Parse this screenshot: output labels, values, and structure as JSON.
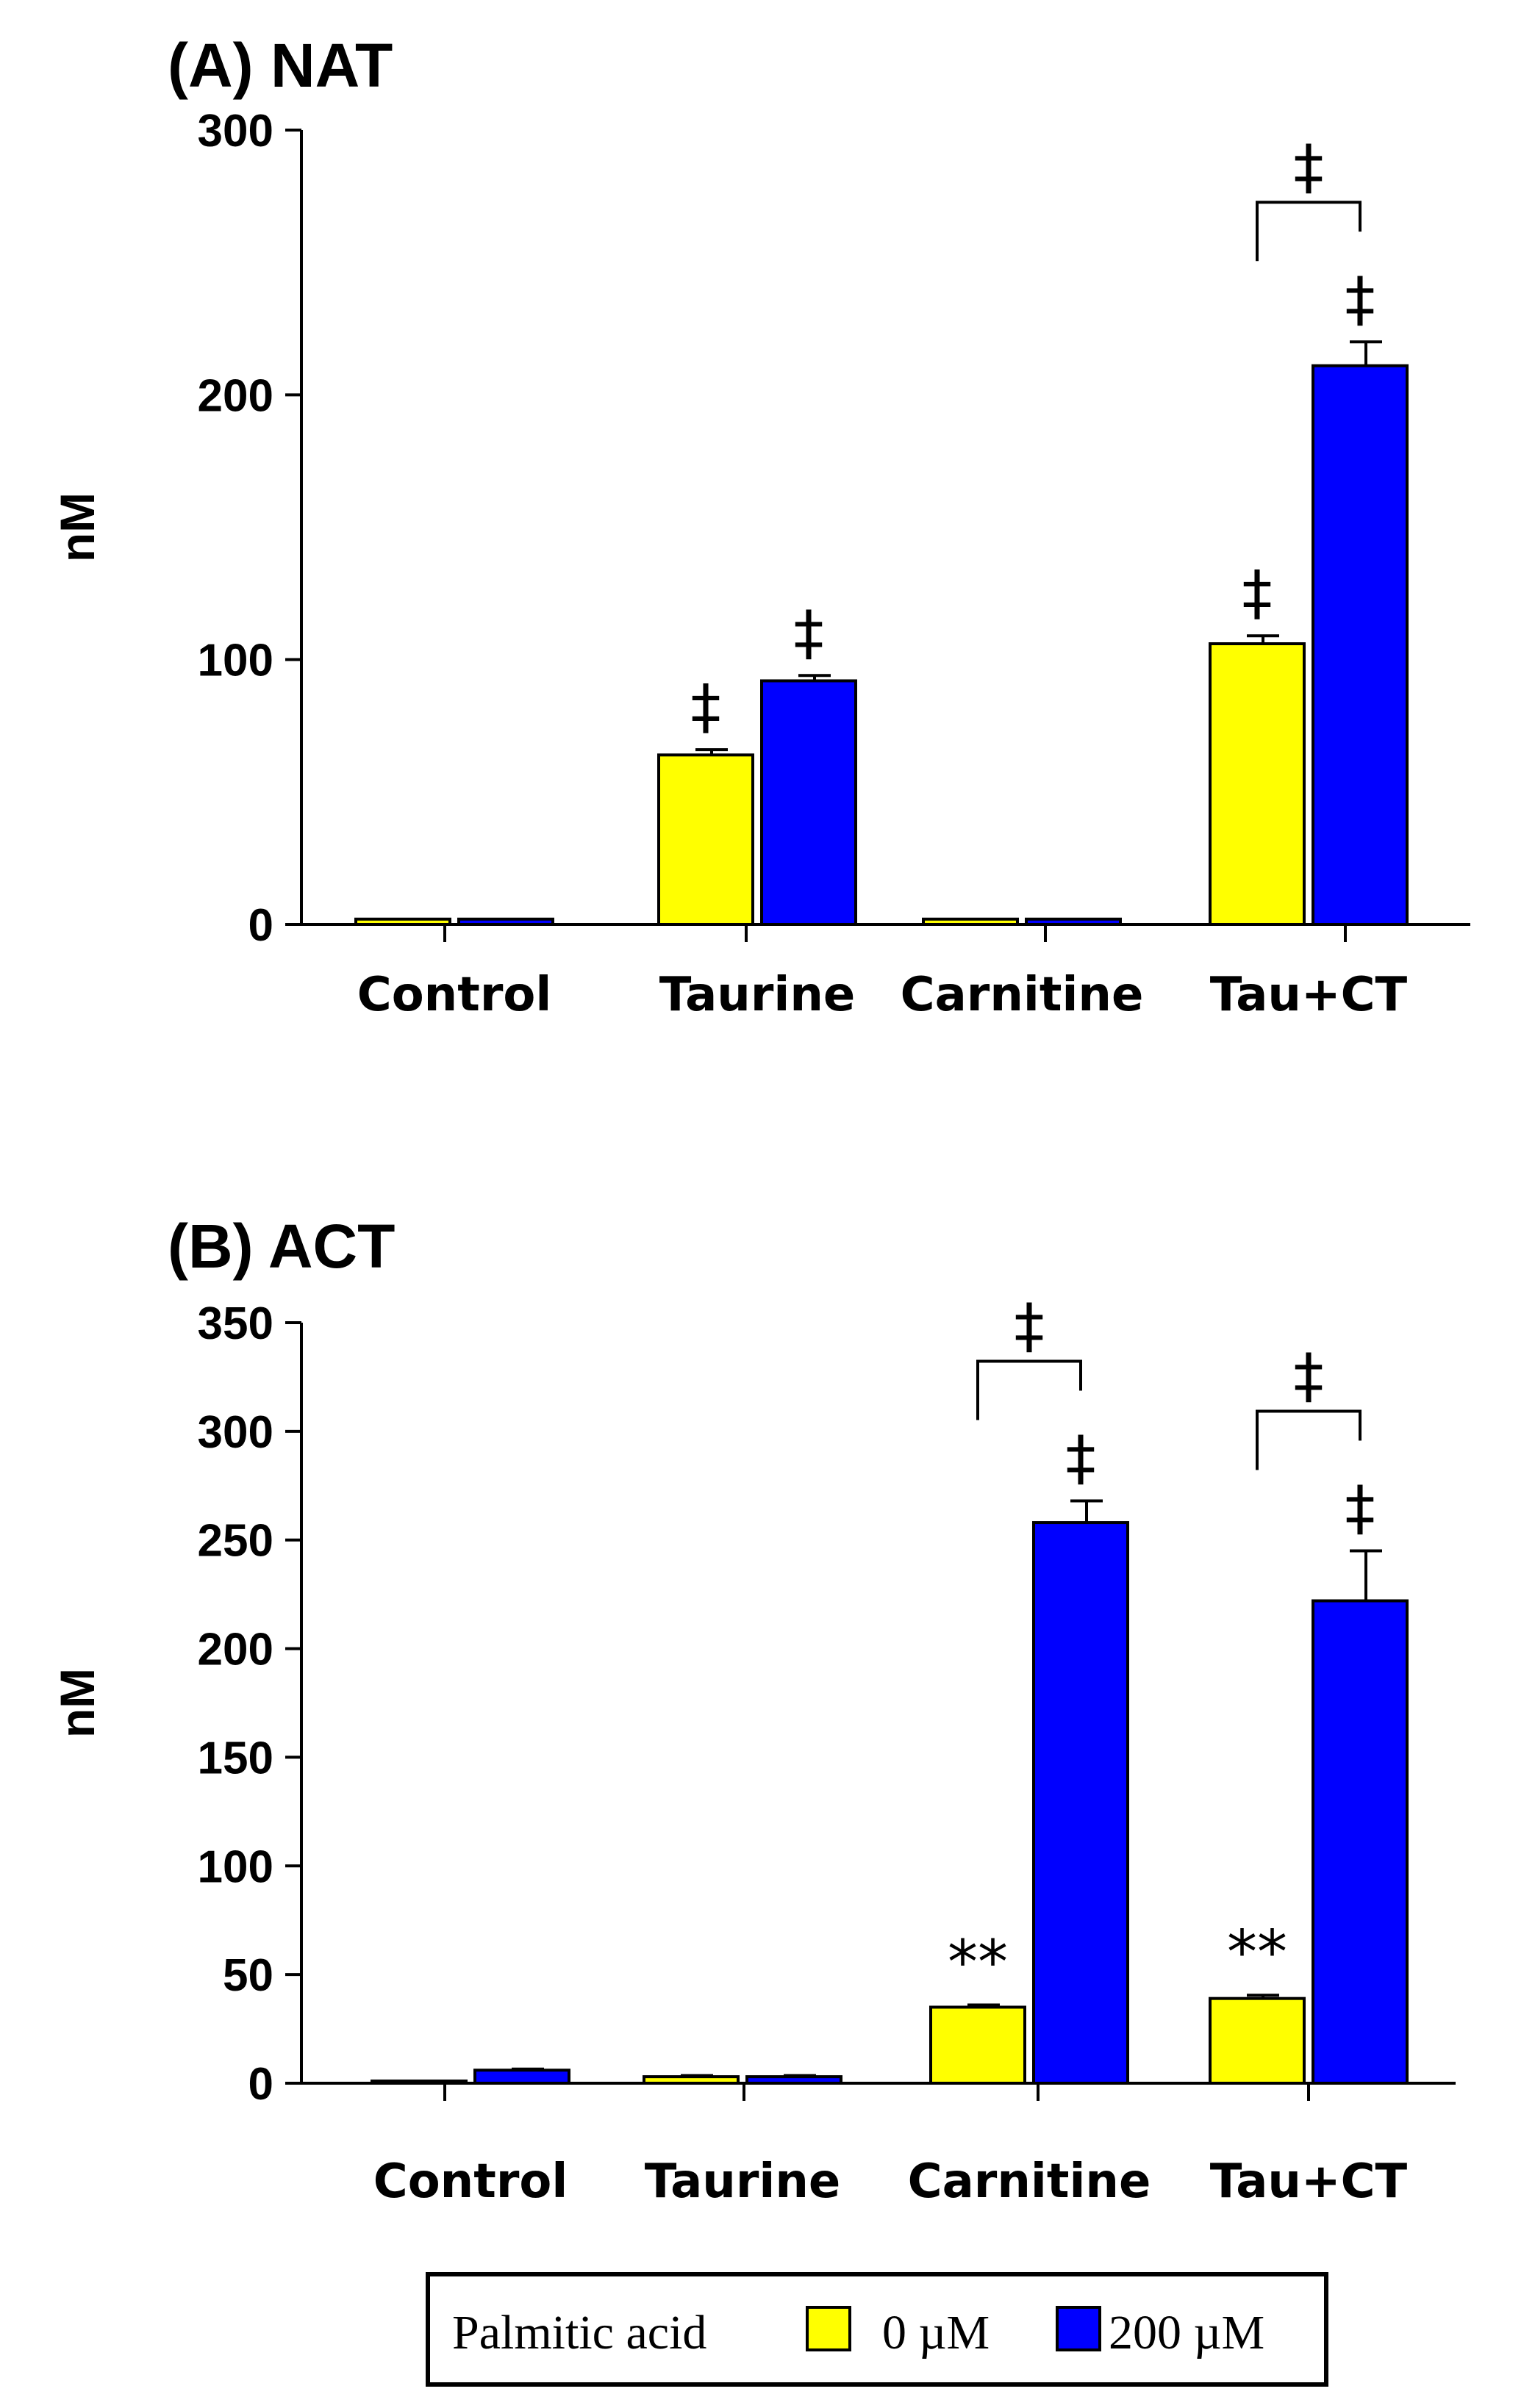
{
  "chart_data": [
    {
      "type": "bar",
      "title": "(A) NAT",
      "ylabel": "nM",
      "xlabel": "",
      "ylim": [
        0,
        300
      ],
      "yticks": [
        0,
        100,
        200,
        300
      ],
      "categories": [
        "Control",
        "Taurine",
        "Carnitine",
        "Tau+CT"
      ],
      "series": [
        {
          "name": "0 µM",
          "color": "#ffff00",
          "values": [
            2,
            64,
            2,
            106
          ],
          "errors": [
            0,
            2,
            0,
            3
          ]
        },
        {
          "name": "200 µM",
          "color": "#0000ff",
          "values": [
            2,
            92,
            2,
            211
          ],
          "errors": [
            0,
            2,
            0,
            9
          ]
        }
      ],
      "annotations": [
        {
          "symbol": "‡",
          "category": 1,
          "series": 0
        },
        {
          "symbol": "‡",
          "category": 1,
          "series": 1
        },
        {
          "symbol": "‡",
          "category": 3,
          "series": 0
        },
        {
          "symbol": "‡",
          "category": 3,
          "series": 1
        },
        {
          "symbol": "‡",
          "category": 3,
          "bracket": true
        }
      ]
    },
    {
      "type": "bar",
      "title": "(B) ACT",
      "ylabel": "nM",
      "xlabel": "",
      "ylim": [
        0,
        350
      ],
      "yticks": [
        0,
        50,
        100,
        150,
        200,
        250,
        300,
        350
      ],
      "categories": [
        "Control",
        "Taurine",
        "Carnitine",
        "Tau+CT"
      ],
      "series": [
        {
          "name": "0 µM",
          "color": "#ffff00",
          "values": [
            1,
            3,
            35,
            39
          ],
          "errors": [
            0,
            0.5,
            1,
            1.5
          ]
        },
        {
          "name": "200 µM",
          "color": "#0000ff",
          "values": [
            6,
            3,
            258,
            222
          ],
          "errors": [
            0.5,
            0.5,
            10,
            23
          ]
        }
      ],
      "annotations": [
        {
          "symbol": "**",
          "category": 2,
          "series": 0
        },
        {
          "symbol": "**",
          "category": 3,
          "series": 0
        },
        {
          "symbol": "‡",
          "category": 2,
          "series": 1
        },
        {
          "symbol": "‡",
          "category": 3,
          "series": 1
        },
        {
          "symbol": "‡",
          "category": 2,
          "bracket": true
        },
        {
          "symbol": "‡",
          "category": 3,
          "bracket": true
        }
      ]
    }
  ],
  "legend": {
    "title": "Palmitic acid",
    "items": [
      {
        "label": "0 µM",
        "color": "#ffff00"
      },
      {
        "label": "200 µM",
        "color": "#0000ff"
      }
    ]
  }
}
